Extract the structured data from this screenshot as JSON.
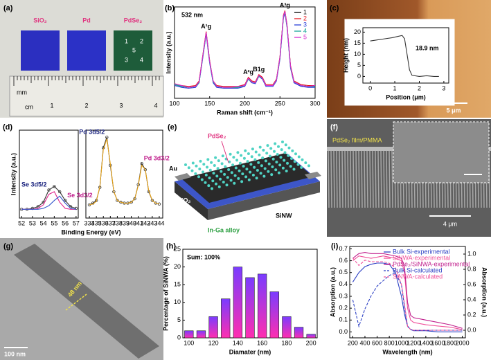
{
  "chart_data": [
    {
      "type": "line",
      "panel_label": "(b)",
      "annotation": "532 nm",
      "xlabel": "Raman shift (cm⁻¹)",
      "ylabel": "Intensity (a.u.)",
      "legend": "upper right",
      "xlim": [
        100,
        300
      ],
      "xticks": [
        100,
        150,
        200,
        250,
        300
      ],
      "ylim": [
        0,
        1
      ],
      "x": [
        100,
        110,
        120,
        130,
        135,
        140,
        145,
        150,
        155,
        160,
        170,
        180,
        190,
        200,
        205,
        210,
        215,
        220,
        225,
        230,
        240,
        245,
        250,
        255,
        257,
        260,
        265,
        270,
        280,
        290,
        300
      ],
      "series": [
        {
          "name": "1",
          "color": "#000000",
          "values": [
            0.15,
            0.13,
            0.12,
            0.13,
            0.18,
            0.45,
            0.72,
            0.4,
            0.18,
            0.13,
            0.12,
            0.12,
            0.12,
            0.14,
            0.22,
            0.18,
            0.17,
            0.25,
            0.22,
            0.14,
            0.14,
            0.2,
            0.45,
            0.9,
            0.95,
            0.8,
            0.35,
            0.18,
            0.14,
            0.13,
            0.13
          ]
        },
        {
          "name": "2",
          "color": "#e8191f",
          "values": [
            0.16,
            0.14,
            0.13,
            0.14,
            0.19,
            0.46,
            0.73,
            0.41,
            0.19,
            0.14,
            0.13,
            0.13,
            0.13,
            0.15,
            0.23,
            0.19,
            0.18,
            0.26,
            0.23,
            0.15,
            0.15,
            0.21,
            0.46,
            0.91,
            0.96,
            0.81,
            0.36,
            0.19,
            0.15,
            0.14,
            0.14
          ]
        },
        {
          "name": "3",
          "color": "#2a3fd8",
          "values": [
            0.14,
            0.12,
            0.11,
            0.12,
            0.17,
            0.43,
            0.7,
            0.38,
            0.17,
            0.12,
            0.11,
            0.11,
            0.11,
            0.13,
            0.21,
            0.17,
            0.16,
            0.24,
            0.21,
            0.13,
            0.13,
            0.19,
            0.43,
            0.88,
            0.93,
            0.78,
            0.33,
            0.17,
            0.13,
            0.12,
            0.12
          ]
        },
        {
          "name": "4",
          "color": "#1aa79a",
          "values": [
            0.15,
            0.13,
            0.12,
            0.13,
            0.17,
            0.44,
            0.71,
            0.39,
            0.18,
            0.13,
            0.12,
            0.12,
            0.12,
            0.14,
            0.21,
            0.18,
            0.17,
            0.24,
            0.22,
            0.14,
            0.14,
            0.2,
            0.44,
            0.89,
            0.94,
            0.79,
            0.34,
            0.18,
            0.14,
            0.13,
            0.13
          ]
        },
        {
          "name": "5",
          "color": "#d62ad0",
          "values": [
            0.16,
            0.14,
            0.12,
            0.13,
            0.18,
            0.45,
            0.72,
            0.4,
            0.19,
            0.13,
            0.12,
            0.12,
            0.13,
            0.14,
            0.22,
            0.18,
            0.17,
            0.25,
            0.22,
            0.14,
            0.14,
            0.2,
            0.45,
            0.9,
            0.95,
            0.8,
            0.35,
            0.18,
            0.14,
            0.13,
            0.14
          ]
        }
      ],
      "peak_labels": [
        {
          "text": "A¹g",
          "x": 145
        },
        {
          "text": "A²g",
          "x": 205
        },
        {
          "text": "B1g",
          "x": 220
        },
        {
          "text": "A³g",
          "x": 257
        }
      ]
    },
    {
      "type": "line",
      "panel_label": "(c)",
      "annotation": "18.9 nm",
      "scale_bar": "5 μm",
      "xlabel": "Position (μm)",
      "ylabel": "Height (nm)",
      "xlim": [
        -0.3,
        3.2
      ],
      "xticks": [
        0,
        1,
        2,
        3
      ],
      "ylim": [
        -3,
        22
      ],
      "yticks": [
        0,
        5,
        10,
        15,
        20
      ],
      "x": [
        0,
        0.3,
        0.6,
        0.9,
        1.1,
        1.3,
        1.4,
        1.5,
        1.6,
        1.7,
        2.0,
        2.3,
        2.6,
        2.8
      ],
      "series": [
        {
          "color": "#333333",
          "values": [
            16,
            16.5,
            17,
            17.5,
            18,
            18.5,
            17,
            10,
            3,
            0.5,
            0,
            0.3,
            0,
            0
          ]
        }
      ]
    },
    {
      "type": "line",
      "panel_label": "(d)",
      "xlabel": "Binding Energy (eV)",
      "ylabel": "Intensity (a.u.)",
      "ylim": [
        0,
        1
      ],
      "segments": [
        {
          "xlim": [
            51.8,
            57.2
          ],
          "xticks": [
            52,
            53,
            54,
            55,
            56,
            57
          ],
          "x": [
            52,
            52.5,
            53,
            53.5,
            54,
            54.5,
            55,
            55.5,
            56,
            56.5,
            57
          ],
          "series": [
            {
              "color": "#333333",
              "marker": "circle",
              "values": [
                0.1,
                0.1,
                0.11,
                0.13,
                0.18,
                0.32,
                0.36,
                0.3,
                0.2,
                0.13,
                0.11
              ]
            },
            {
              "color": "#e0218a",
              "values": [
                0.1,
                0.1,
                0.1,
                0.11,
                0.15,
                0.27,
                0.3,
                0.18,
                0.11,
                0.1,
                0.1
              ]
            },
            {
              "color": "#3355cc",
              "values": [
                0.1,
                0.1,
                0.1,
                0.1,
                0.11,
                0.14,
                0.2,
                0.25,
                0.17,
                0.11,
                0.1
              ]
            }
          ],
          "peak_labels": [
            {
              "text": "Se 3d5/2",
              "x": 54.5
            },
            {
              "text": "Se 3d3/2",
              "x": 56
            }
          ]
        },
        {
          "xlim": [
            333.5,
            344.5
          ],
          "xticks": [
            334,
            335,
            336,
            337,
            338,
            339,
            340,
            341,
            342,
            343,
            344
          ],
          "x": [
            334,
            334.5,
            335,
            335.5,
            336,
            336.5,
            337,
            337.5,
            338,
            338.5,
            339,
            339.5,
            340,
            340.5,
            341,
            341.5,
            342,
            342.5,
            343,
            343.5,
            344
          ],
          "series": [
            {
              "color": "#333333",
              "marker": "circle",
              "values": [
                0.15,
                0.17,
                0.2,
                0.35,
                0.8,
                0.92,
                0.6,
                0.3,
                0.2,
                0.18,
                0.17,
                0.17,
                0.18,
                0.22,
                0.38,
                0.62,
                0.55,
                0.3,
                0.2,
                0.17,
                0.16
              ]
            },
            {
              "color": "#e8a317",
              "values": [
                0.15,
                0.16,
                0.19,
                0.36,
                0.78,
                0.9,
                0.62,
                0.3,
                0.2,
                0.18,
                0.17,
                0.17,
                0.18,
                0.22,
                0.37,
                0.6,
                0.55,
                0.31,
                0.2,
                0.17,
                0.16
              ]
            }
          ],
          "peak_labels": [
            {
              "text": "Pd 3d5/2",
              "x": 336.5
            },
            {
              "text": "Pd 3d3/2",
              "x": 341.5
            }
          ]
        }
      ]
    },
    {
      "type": "bar",
      "panel_label": "(h)",
      "annotation": "Sum: 100%",
      "xlabel": "Diamater (nm)",
      "ylabel": "Percentage of SiNWA (%)",
      "gradient": [
        "#7a3cff",
        "#ff2fb0"
      ],
      "xlim": [
        95,
        205
      ],
      "xticks": [
        100,
        120,
        140,
        160,
        180,
        200
      ],
      "ylim": [
        0,
        25
      ],
      "yticks": [
        0,
        5,
        10,
        15,
        20,
        25
      ],
      "x": [
        100,
        110,
        120,
        130,
        140,
        150,
        160,
        170,
        180,
        190,
        200
      ],
      "values": [
        2,
        2,
        6,
        11,
        20,
        17,
        18,
        13,
        6,
        3,
        1
      ]
    },
    {
      "type": "line",
      "panel_label": "(i)",
      "xlabel": "Wavelength (nm)",
      "ylabel": "Absorption (a.u.)",
      "y2label": "Absorption (a.u.)",
      "legend": "upper right",
      "xlim": [
        150,
        2050
      ],
      "xticks": [
        200,
        400,
        600,
        800,
        1000,
        1200,
        1400,
        1600,
        1800,
        2000
      ],
      "ylim": [
        -0.05,
        0.72
      ],
      "yticks": [
        {
          "value": 0,
          "label": "0.0"
        },
        0.1,
        0.2,
        0.3,
        0.4,
        0.5,
        0.6,
        0.7
      ],
      "y2lim": [
        -0.1,
        1.1
      ],
      "y2ticks": [
        {
          "value": 0,
          "label": "0.0"
        },
        0.2,
        0.4,
        0.6,
        0.8,
        {
          "value": 1,
          "label": "1.0"
        }
      ],
      "x": [
        200,
        300,
        400,
        500,
        600,
        700,
        800,
        900,
        1000,
        1050,
        1100,
        1150,
        1200,
        1300,
        1400,
        1600,
        1800,
        2000
      ],
      "series": [
        {
          "name": "Bulk Si-experimental",
          "color": "#2b3fc4",
          "values": [
            0.42,
            0.5,
            0.55,
            0.57,
            0.58,
            0.58,
            0.57,
            0.5,
            0.3,
            0.15,
            0.05,
            0.02,
            0.01,
            0.01,
            0.01,
            0,
            0,
            0
          ]
        },
        {
          "name": "SiNWA-experimental",
          "color": "#f0509a",
          "values": [
            0.6,
            0.64,
            0.63,
            0.62,
            0.63,
            0.64,
            0.63,
            0.62,
            0.6,
            0.5,
            0.2,
            0.1,
            0.08,
            0.07,
            0.06,
            0.05,
            0.04,
            0.02
          ]
        },
        {
          "name": "PdSe₂/SiNWA-experimental",
          "color": "#c01e8c",
          "values": [
            0.62,
            0.66,
            0.67,
            0.66,
            0.66,
            0.66,
            0.65,
            0.64,
            0.62,
            0.55,
            0.25,
            0.14,
            0.12,
            0.11,
            0.1,
            0.08,
            0.06,
            0.03
          ]
        },
        {
          "name": "Bulk Si-calculated",
          "color": "#2b3fc4",
          "dashed": true,
          "axis": "y2",
          "values": [
            0.4,
            0.05,
            0.28,
            0.45,
            0.58,
            0.65,
            0.72,
            0.75,
            0.6,
            0.3,
            0.05,
            0.01,
            0,
            0,
            0,
            0,
            0,
            0
          ]
        },
        {
          "name": "SiNWA-calculated",
          "color": "#f0509a",
          "dashed": true,
          "axis": "y2",
          "values": [
            0.95,
            0.85,
            0.92,
            0.9,
            0.9,
            0.9,
            0.88,
            0.82,
            0.6,
            0.35,
            0.05,
            0.01,
            0,
            0,
            0,
            0,
            0,
            0
          ]
        }
      ]
    }
  ],
  "panels": {
    "a": {
      "label": "(a)",
      "materials": [
        "SiO₂",
        "Pd",
        "PdSe₂"
      ],
      "sample_numbers": [
        "1",
        "2",
        "5",
        "3",
        "4"
      ],
      "ruler": [
        "mm",
        "cm",
        "1",
        "2",
        "3",
        "4"
      ]
    },
    "e": {
      "label": "(e)",
      "texts": [
        "PdSe₂",
        "Au",
        "SiO₂",
        "SiNW",
        "In-Ga alloy"
      ]
    },
    "f": {
      "label": "(f)",
      "film": "PdSe₂ film/PMMA",
      "scale_bar": "4 μm"
    },
    "g": {
      "label": "(g)",
      "width": "48 nm",
      "scale_bar": "100 nm"
    }
  }
}
